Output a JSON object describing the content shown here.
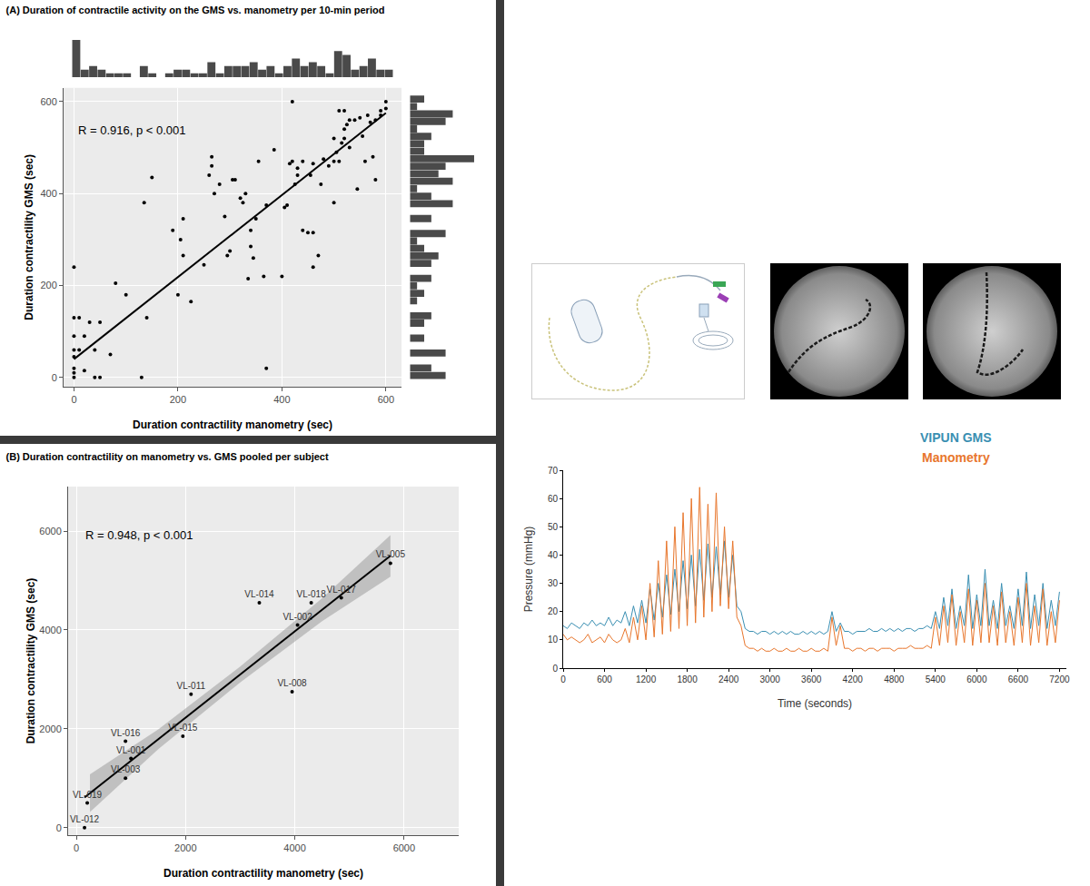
{
  "chart_data": [
    {
      "type": "scatter",
      "title": "(A) Duration of contractile activity on the GMS vs. manometry per 10-min period",
      "x_label": "Duration contractility manometry (sec)",
      "y_label": "Duration contractility GMS (sec)",
      "annotation": "R = 0.916, p < 0.001",
      "x": [
        0,
        0,
        10,
        0,
        0,
        0,
        0,
        0,
        0,
        10,
        20,
        20,
        30,
        40,
        50,
        50,
        40,
        70,
        80,
        100,
        130,
        135,
        140,
        150,
        190,
        200,
        205,
        210,
        210,
        225,
        250,
        260,
        265,
        265,
        270,
        280,
        290,
        295,
        300,
        305,
        310,
        320,
        325,
        330,
        335,
        340,
        340,
        345,
        350,
        355,
        365,
        370,
        370,
        385,
        400,
        405,
        410,
        415,
        420,
        420,
        425,
        430,
        430,
        440,
        440,
        450,
        455,
        460,
        460,
        460,
        470,
        475,
        480,
        490,
        500,
        500,
        500,
        505,
        510,
        515,
        520,
        520,
        525,
        530,
        540,
        545,
        550,
        555,
        560,
        565,
        570,
        575,
        580,
        580,
        590,
        600,
        590,
        600,
        520,
        530,
        510
      ],
      "values": [
        240,
        130,
        130,
        90,
        60,
        45,
        20,
        10,
        0,
        60,
        90,
        15,
        120,
        0,
        0,
        120,
        60,
        50,
        205,
        180,
        0,
        380,
        130,
        435,
        320,
        180,
        300,
        265,
        345,
        165,
        245,
        440,
        460,
        480,
        400,
        420,
        350,
        265,
        275,
        430,
        430,
        390,
        380,
        400,
        215,
        285,
        320,
        260,
        345,
        470,
        220,
        20,
        375,
        495,
        220,
        370,
        375,
        465,
        470,
        600,
        420,
        440,
        455,
        470,
        320,
        315,
        440,
        315,
        240,
        465,
        265,
        420,
        475,
        460,
        470,
        380,
        520,
        490,
        470,
        510,
        520,
        540,
        550,
        500,
        560,
        410,
        565,
        525,
        470,
        570,
        555,
        480,
        560,
        430,
        570,
        600,
        580,
        585,
        580,
        560,
        580
      ],
      "fit": {
        "x": [
          0,
          600
        ],
        "values": [
          40,
          575
        ]
      },
      "color": "#000000",
      "marker": "circle",
      "xlim": [
        -20,
        630
      ],
      "xticks": [
        0,
        200,
        400,
        600
      ],
      "ylim": [
        -20,
        630
      ],
      "yticks": [
        0,
        200,
        400,
        600
      ],
      "grid": true
    },
    {
      "type": "scatter",
      "title": "(B) Duration contractility on manometry vs. GMS pooled per subject",
      "x_label": "Duration contractility manometry (sec)",
      "y_label": "Duration contractility GMS (sec)",
      "annotation": "R = 0.948, p < 0.001",
      "labels": [
        "VL-005",
        "VL-017",
        "VL-018",
        "VL-002",
        "VL-014",
        "VL-008",
        "VL-011",
        "VL-015",
        "VL-016",
        "VL-001",
        "VL-003",
        "VL-019",
        "VL-012"
      ],
      "x": [
        5750,
        4850,
        4300,
        4050,
        3350,
        3950,
        2100,
        1950,
        900,
        1000,
        900,
        200,
        150
      ],
      "values": [
        5350,
        4650,
        4550,
        4100,
        4550,
        2750,
        2700,
        1850,
        1750,
        1400,
        1000,
        500,
        0
      ],
      "fit": {
        "x": [
          150,
          5750
        ],
        "values": [
          611,
          5500
        ]
      },
      "band": {
        "x": [
          250,
          1500,
          3000,
          4500,
          5750
        ],
        "lower": [
          318,
          1590,
          2940,
          4180,
          5080
        ],
        "upper": [
          1078,
          1990,
          3260,
          4640,
          5920
        ]
      },
      "color": "#000000",
      "marker": "circle",
      "xlim": [
        -150,
        7000
      ],
      "xticks": [
        0,
        2000,
        4000,
        6000
      ],
      "ylim": [
        -150,
        6900
      ],
      "yticks": [
        0,
        2000,
        4000,
        6000
      ],
      "grid": true
    },
    {
      "type": "line",
      "x_label": "Time (seconds)",
      "y_label": "Pressure (mmHg)",
      "x": [
        0,
        60,
        120,
        180,
        240,
        300,
        360,
        420,
        480,
        540,
        600,
        660,
        720,
        780,
        840,
        900,
        960,
        1020,
        1080,
        1140,
        1200,
        1260,
        1320,
        1380,
        1440,
        1500,
        1560,
        1620,
        1680,
        1740,
        1800,
        1860,
        1920,
        1980,
        2040,
        2100,
        2160,
        2220,
        2280,
        2340,
        2400,
        2460,
        2520,
        2580,
        2640,
        2700,
        2760,
        2820,
        2880,
        2940,
        3000,
        3060,
        3120,
        3180,
        3240,
        3300,
        3360,
        3420,
        3480,
        3540,
        3600,
        3660,
        3720,
        3780,
        3840,
        3900,
        3960,
        4020,
        4080,
        4140,
        4200,
        4260,
        4320,
        4380,
        4440,
        4500,
        4560,
        4620,
        4680,
        4740,
        4800,
        4860,
        4920,
        4980,
        5040,
        5100,
        5160,
        5220,
        5280,
        5340,
        5400,
        5460,
        5520,
        5580,
        5640,
        5700,
        5760,
        5820,
        5880,
        5940,
        6000,
        6060,
        6120,
        6180,
        6240,
        6300,
        6360,
        6420,
        6480,
        6540,
        6600,
        6660,
        6720,
        6780,
        6840,
        6900,
        6960,
        7020,
        7080,
        7140,
        7200
      ],
      "series": [
        {
          "name": "VIPUN GMS",
          "color": "#3a8fb2",
          "values": [
            15,
            14,
            16,
            15,
            14,
            16,
            15,
            17,
            15,
            16,
            15,
            18,
            15,
            17,
            16,
            20,
            15,
            22,
            16,
            24,
            16,
            28,
            17,
            30,
            18,
            33,
            19,
            35,
            20,
            38,
            21,
            40,
            22,
            42,
            24,
            44,
            25,
            43,
            26,
            45,
            25,
            40,
            22,
            20,
            14,
            13,
            13,
            12,
            13,
            13,
            12,
            13,
            12,
            13,
            12,
            13,
            12,
            12,
            13,
            12,
            13,
            12,
            13,
            12,
            13,
            20,
            13,
            16,
            13,
            13,
            12,
            13,
            13,
            13,
            14,
            13,
            13,
            14,
            13,
            14,
            13,
            14,
            13,
            14,
            14,
            13,
            14,
            14,
            15,
            14,
            20,
            14,
            25,
            15,
            28,
            14,
            22,
            15,
            33,
            14,
            26,
            15,
            35,
            15,
            24,
            14,
            30,
            15,
            22,
            14,
            28,
            15,
            34,
            14,
            26,
            15,
            30,
            14,
            24,
            15,
            27
          ]
        },
        {
          "name": "Manometry",
          "color": "#e8762c",
          "values": [
            12,
            10,
            11,
            10,
            9,
            10,
            12,
            9,
            10,
            11,
            9,
            12,
            10,
            9,
            10,
            14,
            9,
            18,
            10,
            22,
            10,
            30,
            11,
            38,
            12,
            45,
            13,
            50,
            14,
            55,
            15,
            60,
            16,
            64,
            18,
            58,
            20,
            62,
            22,
            50,
            21,
            45,
            18,
            15,
            8,
            7,
            7,
            6,
            7,
            6,
            6,
            7,
            6,
            6,
            7,
            6,
            6,
            7,
            6,
            6,
            7,
            6,
            6,
            7,
            6,
            18,
            8,
            15,
            7,
            7,
            6,
            7,
            7,
            6,
            7,
            7,
            6,
            7,
            7,
            7,
            6,
            7,
            7,
            7,
            8,
            7,
            7,
            7,
            8,
            7,
            18,
            8,
            22,
            9,
            26,
            8,
            20,
            9,
            28,
            8,
            24,
            9,
            30,
            9,
            22,
            8,
            27,
            9,
            20,
            8,
            25,
            9,
            30,
            8,
            22,
            9,
            28,
            8,
            20,
            9,
            24
          ]
        }
      ],
      "legend": "top right",
      "xlim": [
        0,
        7300
      ],
      "xticks": [
        0,
        600,
        1200,
        1800,
        2400,
        3000,
        3600,
        4200,
        4800,
        5400,
        6000,
        6600,
        7200
      ],
      "ylim": [
        0,
        70
      ],
      "yticks": [
        0,
        10,
        20,
        30,
        40,
        50,
        60,
        70
      ],
      "grid": false
    }
  ]
}
